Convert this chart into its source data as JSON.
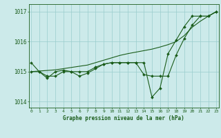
{
  "hours": [
    0,
    1,
    2,
    3,
    4,
    5,
    6,
    7,
    8,
    9,
    10,
    11,
    12,
    13,
    14,
    15,
    16,
    17,
    18,
    19,
    20,
    21,
    22,
    23
  ],
  "pressure_line1": [
    1015.3,
    1015.0,
    1014.85,
    1014.85,
    1015.0,
    1015.0,
    1014.85,
    1014.95,
    1015.1,
    1015.25,
    1015.3,
    1015.3,
    1015.3,
    1015.3,
    1014.9,
    1014.85,
    1014.85,
    1014.85,
    1015.55,
    1016.1,
    1016.55,
    1016.85,
    1016.85,
    1017.0
  ],
  "pressure_line2": [
    1015.0,
    1015.0,
    1014.78,
    1015.0,
    1015.05,
    1015.0,
    1015.0,
    1015.0,
    1015.15,
    1015.25,
    1015.3,
    1015.3,
    1015.3,
    1015.3,
    1015.3,
    1014.15,
    1014.45,
    1015.6,
    1016.05,
    1016.5,
    1016.85,
    1016.85,
    1016.85,
    1017.0
  ],
  "pressure_trend": [
    1015.0,
    1015.02,
    1015.04,
    1015.06,
    1015.1,
    1015.14,
    1015.18,
    1015.22,
    1015.3,
    1015.38,
    1015.46,
    1015.54,
    1015.6,
    1015.65,
    1015.7,
    1015.75,
    1015.82,
    1015.9,
    1016.0,
    1016.2,
    1016.48,
    1016.68,
    1016.85,
    1017.0
  ],
  "ylim": [
    1013.8,
    1017.25
  ],
  "yticks": [
    1014,
    1015,
    1016,
    1017
  ],
  "xtick_labels": [
    "0",
    "1",
    "2",
    "3",
    "4",
    "5",
    "6",
    "7",
    "8",
    "9",
    "10",
    "11",
    "12",
    "13",
    "14",
    "15",
    "16",
    "17",
    "18",
    "19",
    "20",
    "21",
    "22",
    "23"
  ],
  "line_color": "#1a5c1a",
  "bg_color": "#cceaea",
  "grid_color": "#99cccc",
  "xlabel": "Graphe pression niveau de la mer (hPa)",
  "xlabel_color": "#1a5c1a",
  "tick_color": "#1a5c1a",
  "marker": "D",
  "marker_size": 2.0,
  "linewidth": 0.8
}
